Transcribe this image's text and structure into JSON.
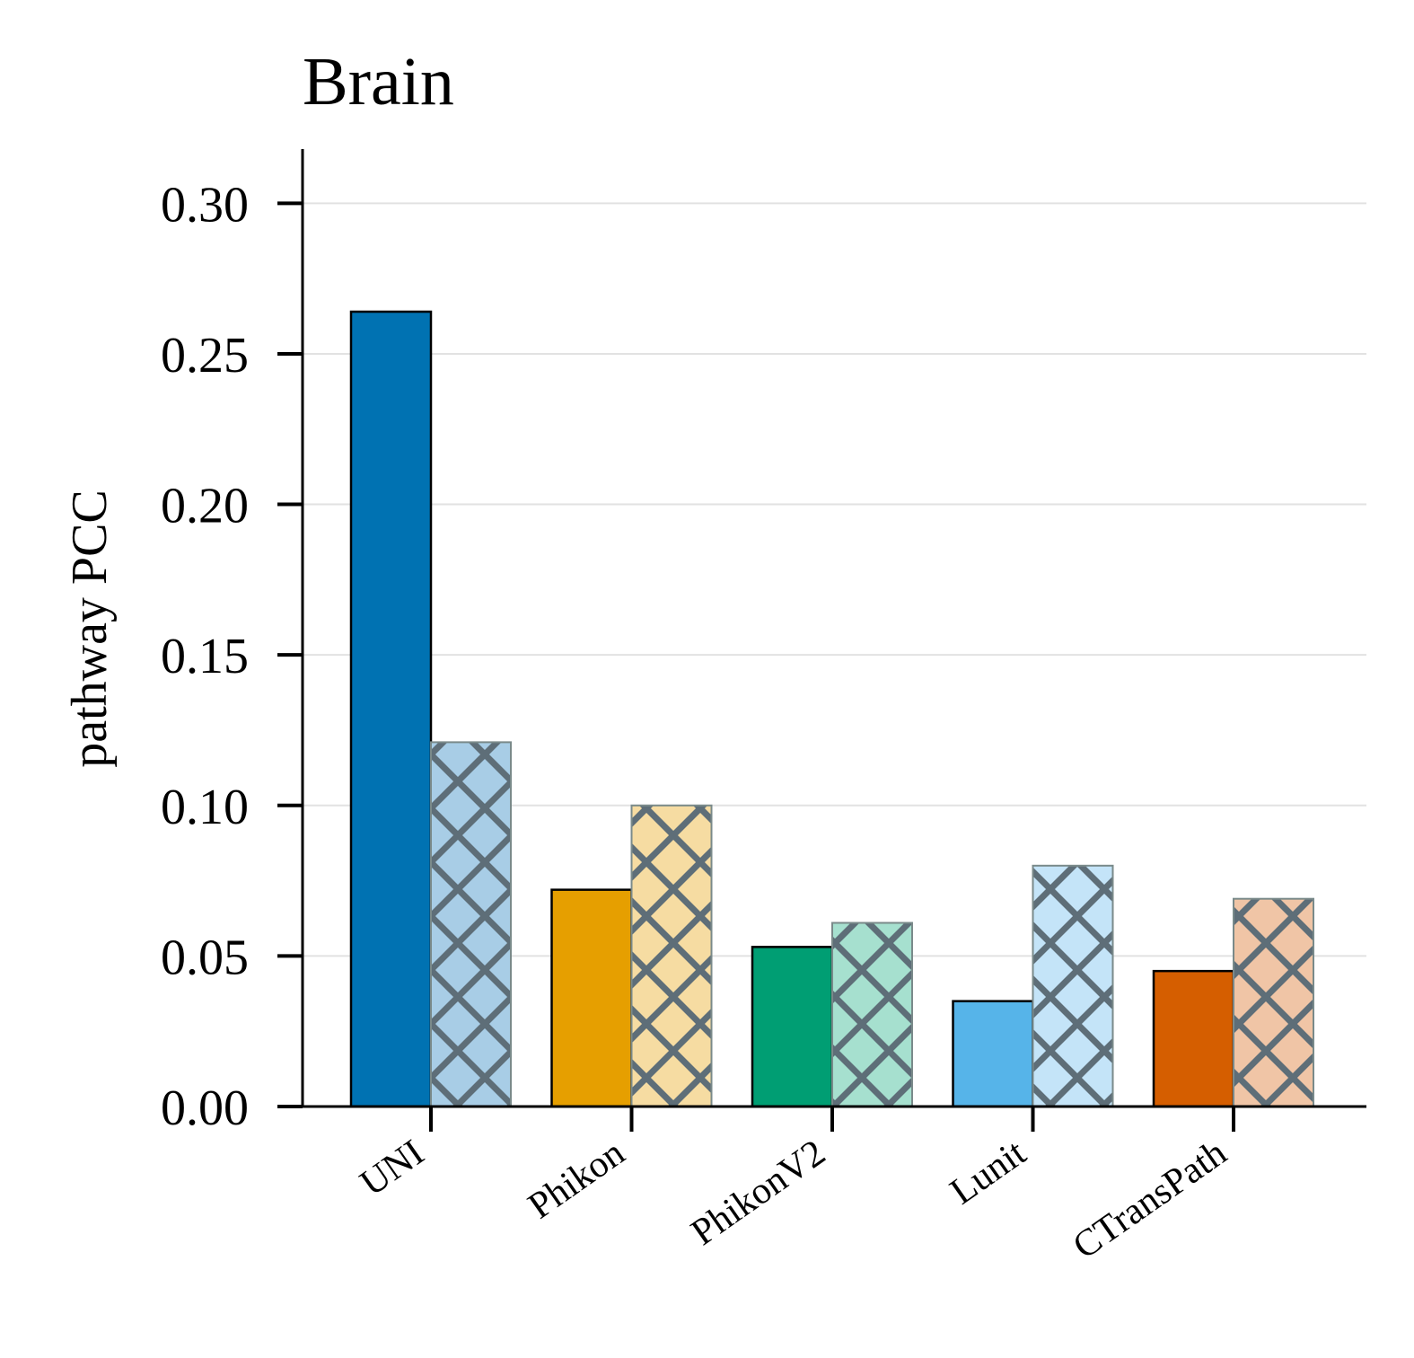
{
  "chart_data": {
    "type": "bar",
    "title": "Brain",
    "ylabel": "pathway PCC",
    "xlabel": "",
    "ylim": [
      0,
      0.318
    ],
    "yticks": [
      0.0,
      0.05,
      0.1,
      0.15,
      0.2,
      0.25,
      0.3
    ],
    "ytick_labels": [
      "0.00",
      "0.05",
      "0.10",
      "0.15",
      "0.20",
      "0.25",
      "0.30"
    ],
    "grid": "horizontal",
    "categories": [
      "UNI",
      "Phikon",
      "PhikonV2",
      "Lunit",
      "CTransPath"
    ],
    "series": [
      {
        "style": "solid",
        "values": [
          0.264,
          0.072,
          0.053,
          0.035,
          0.045
        ]
      },
      {
        "style": "hatched",
        "values": [
          0.121,
          0.1,
          0.061,
          0.08,
          0.069
        ]
      }
    ],
    "category_colors": [
      "#0072b2",
      "#e69f00",
      "#009e73",
      "#56b4e9",
      "#d55e00"
    ],
    "hatched_fill_colors": [
      "#a8cde6",
      "#f6dca2",
      "#a6e0cf",
      "#c4e4f8",
      "#f0c5a6"
    ],
    "hatch_line_color": "#5e6e78"
  }
}
